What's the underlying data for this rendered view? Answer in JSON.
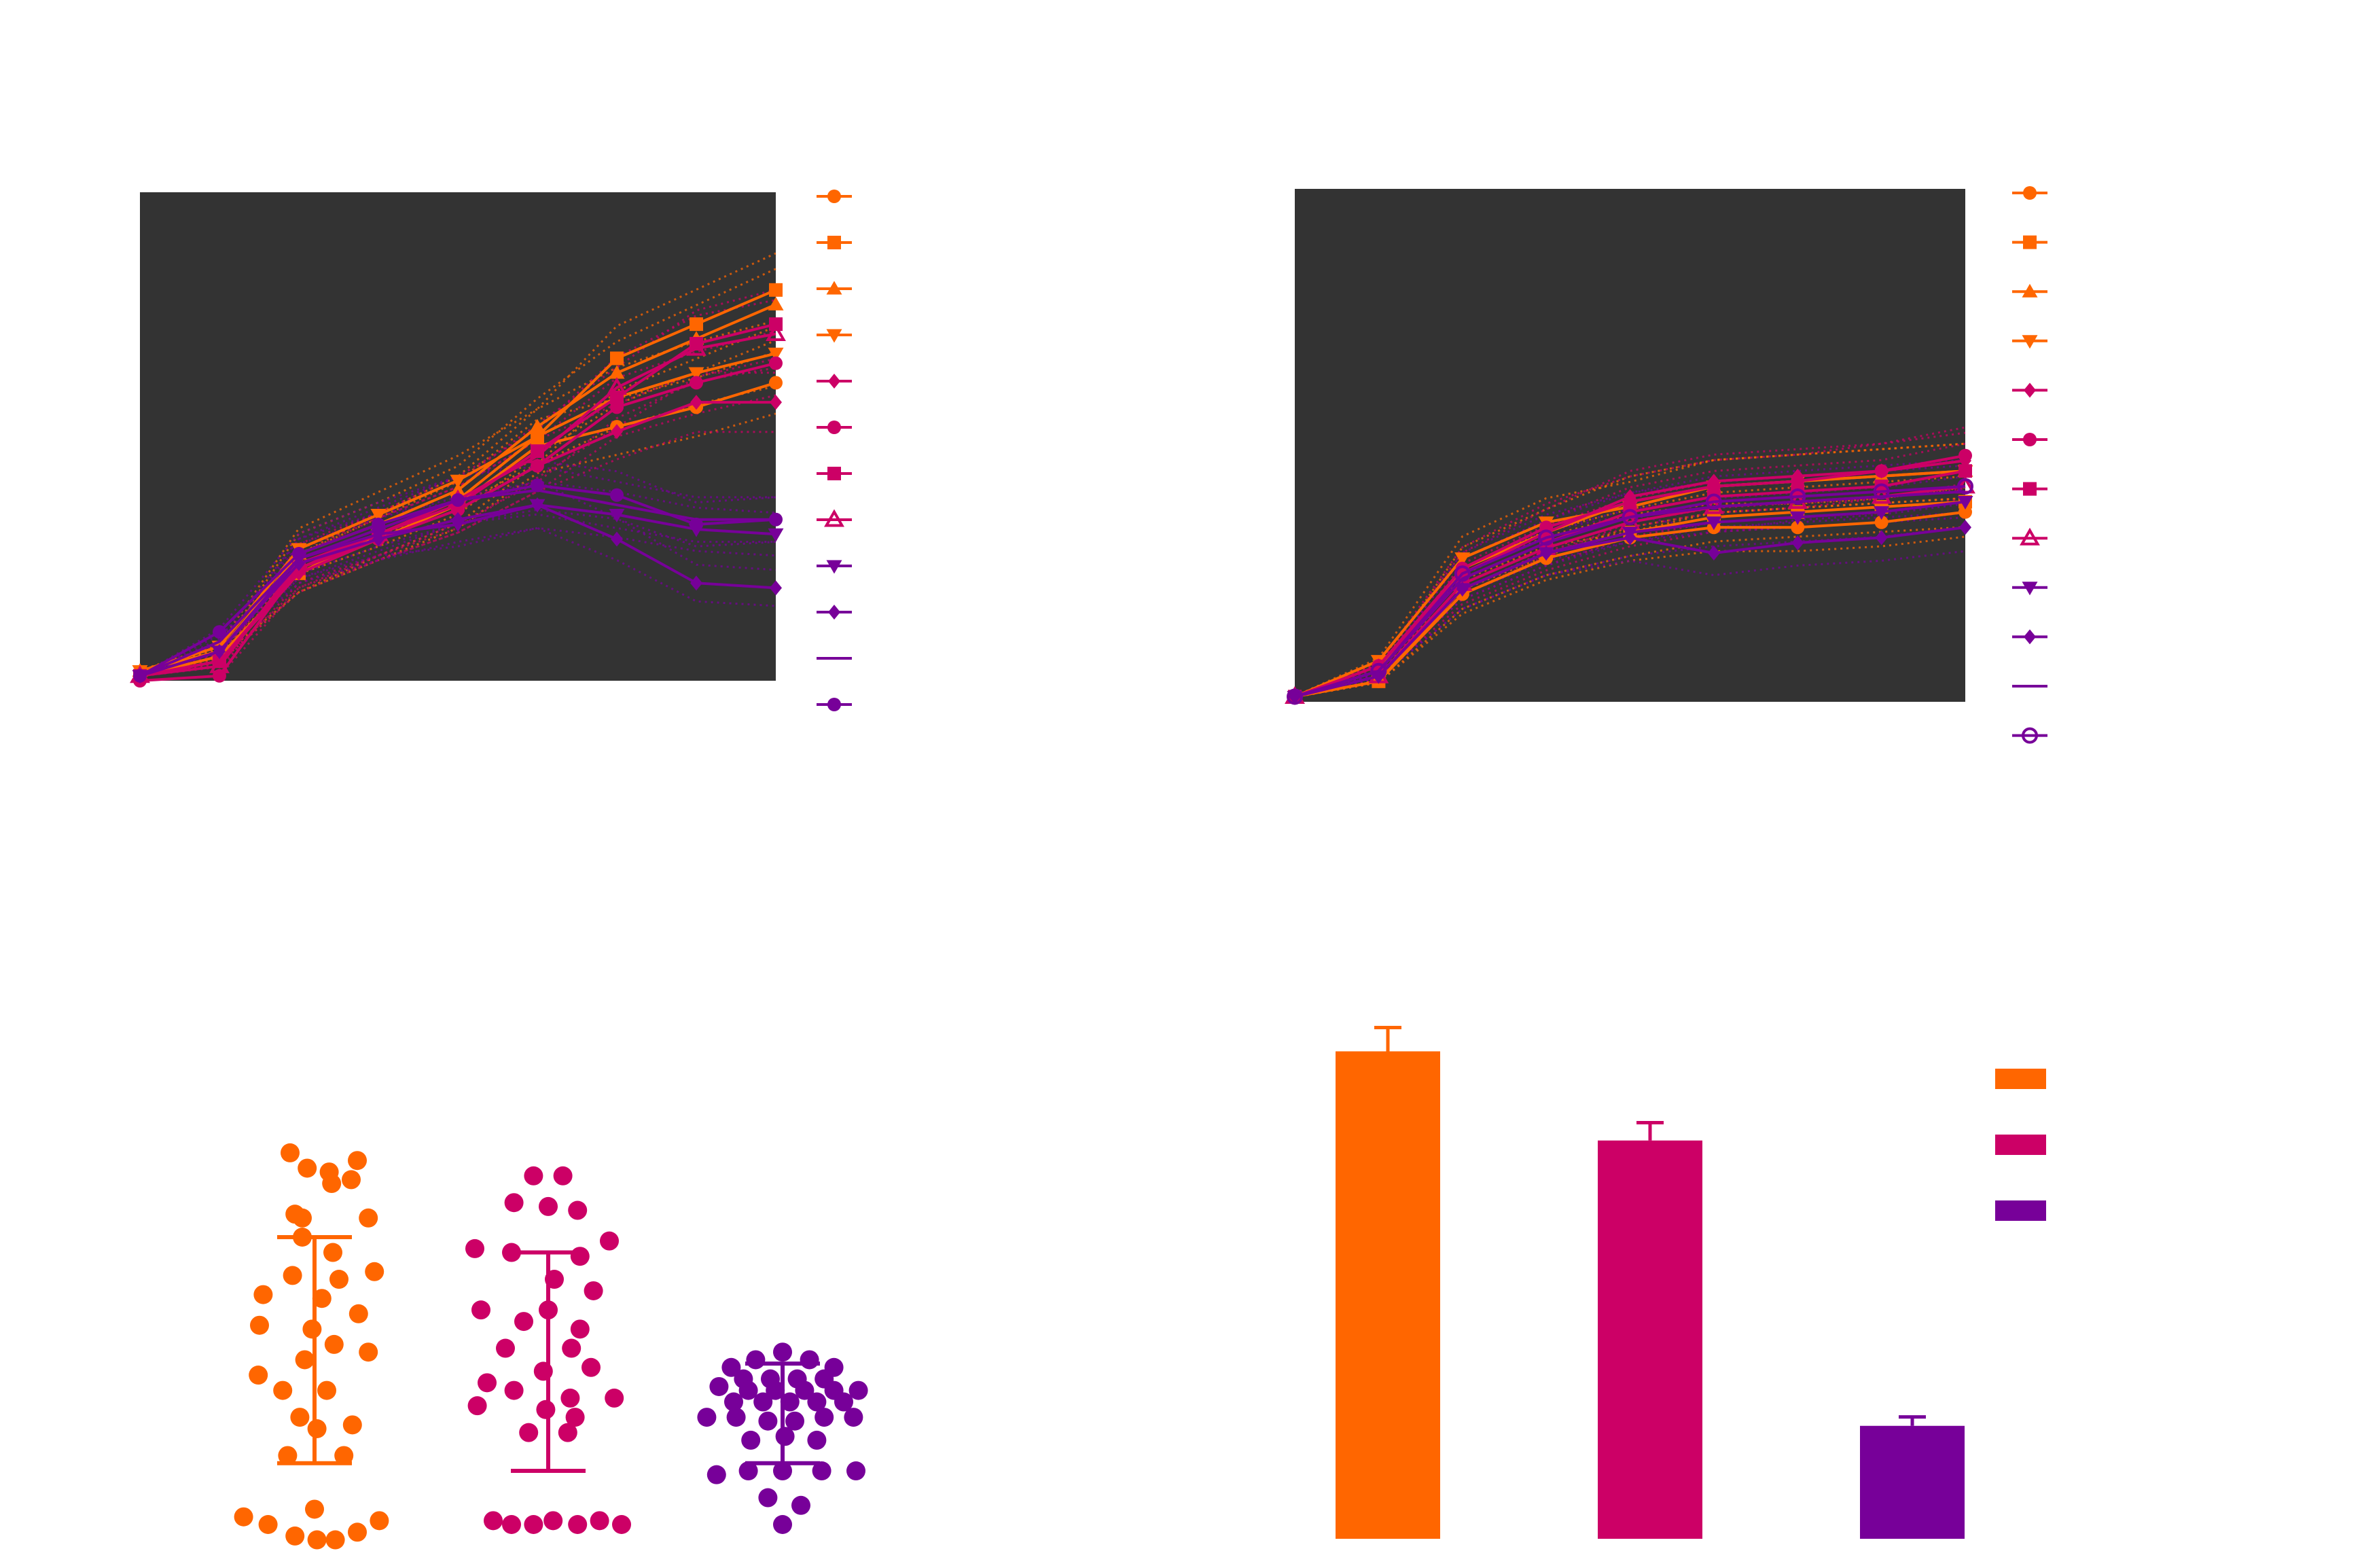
{
  "colors": {
    "orange": "#FF6600",
    "magenta": "#CC0066",
    "purple": "#770099",
    "plot_background": "#333333",
    "page_background": "#FFFFFF"
  },
  "chart_data": [
    {
      "panel": "top-left",
      "type": "line",
      "title": "",
      "xlabel": "",
      "ylabel": "",
      "xlim": [
        0,
        8
      ],
      "ylim": [
        0,
        100
      ],
      "grid": false,
      "background": "#333333",
      "legend_placement": "right",
      "x": [
        0,
        1,
        2,
        3,
        4,
        5,
        6,
        7,
        8
      ],
      "series": [
        {
          "color": "#FF6600",
          "marker": "circle-filled",
          "values": [
            1,
            5,
            22,
            29,
            36,
            48,
            52,
            56,
            61
          ]
        },
        {
          "color": "#FF6600",
          "marker": "square-filled",
          "values": [
            1,
            4,
            22,
            30,
            37,
            50,
            66,
            73,
            80
          ]
        },
        {
          "color": "#FF6600",
          "marker": "triangle-up-filled",
          "values": [
            2,
            6,
            26,
            32,
            39,
            52,
            63,
            70,
            77
          ]
        },
        {
          "color": "#FF6600",
          "marker": "triangle-down-filled",
          "values": [
            2,
            7,
            27,
            34,
            41,
            50,
            58,
            63,
            67
          ]
        },
        {
          "color": "#CC0066",
          "marker": "diamond-filled",
          "values": [
            1,
            4,
            22,
            29,
            35,
            44,
            51,
            57,
            57
          ]
        },
        {
          "color": "#CC0066",
          "marker": "circle-filled",
          "values": [
            0,
            1,
            23,
            29,
            35,
            44,
            56,
            61,
            65
          ]
        },
        {
          "color": "#CC0066",
          "marker": "square-filled",
          "values": [
            1,
            4,
            23,
            30,
            36,
            47,
            58,
            69,
            73
          ]
        },
        {
          "color": "#CC0066",
          "marker": "triangle-up-open",
          "values": [
            1,
            3,
            24,
            30,
            37,
            46,
            60,
            68,
            71
          ]
        },
        {
          "color": "#770099",
          "marker": "triangle-down-filled",
          "values": [
            1,
            6,
            25,
            30,
            32,
            36,
            34,
            31,
            30
          ]
        },
        {
          "color": "#770099",
          "marker": "diamond-filled",
          "values": [
            1,
            6,
            24,
            29,
            33,
            36,
            29,
            20,
            19
          ]
        },
        {
          "color": "#770099",
          "marker": "none",
          "values": [
            1,
            8,
            25,
            31,
            37,
            39,
            36,
            33,
            33
          ]
        },
        {
          "color": "#770099",
          "marker": "circle-filled",
          "values": [
            1,
            10,
            26,
            32,
            37,
            40,
            38,
            32,
            33
          ]
        }
      ]
    },
    {
      "panel": "top-right",
      "type": "line",
      "title": "",
      "xlabel": "",
      "ylabel": "",
      "xlim": [
        0,
        8
      ],
      "ylim": [
        0,
        100
      ],
      "grid": false,
      "background": "#333333",
      "legend_placement": "right",
      "x": [
        0,
        1,
        2,
        3,
        4,
        5,
        6,
        7,
        8
      ],
      "series": [
        {
          "color": "#FF6600",
          "marker": "circle-filled",
          "values": [
            1,
            4,
            21,
            28,
            32,
            34,
            34,
            35,
            37
          ]
        },
        {
          "color": "#FF6600",
          "marker": "square-filled",
          "values": [
            1,
            4,
            22,
            29,
            33,
            36,
            37,
            38,
            39
          ]
        },
        {
          "color": "#FF6600",
          "marker": "triangle-up-filled",
          "values": [
            1,
            6,
            26,
            33,
            39,
            42,
            43,
            44,
            45
          ]
        },
        {
          "color": "#FF6600",
          "marker": "triangle-down-filled",
          "values": [
            1,
            8,
            28,
            35,
            38,
            42,
            43,
            44,
            45
          ]
        },
        {
          "color": "#CC0066",
          "marker": "diamond-filled",
          "values": [
            1,
            7,
            25,
            33,
            40,
            43,
            44,
            45,
            47
          ]
        },
        {
          "color": "#CC0066",
          "marker": "circle-filled",
          "values": [
            1,
            7,
            26,
            34,
            39,
            42,
            43,
            45,
            48
          ]
        },
        {
          "color": "#CC0066",
          "marker": "square-filled",
          "values": [
            1,
            6,
            24,
            31,
            37,
            40,
            41,
            42,
            45
          ]
        },
        {
          "color": "#CC0066",
          "marker": "triangle-up-open",
          "values": [
            1,
            5,
            23,
            30,
            35,
            38,
            39,
            40,
            42
          ]
        },
        {
          "color": "#770099",
          "marker": "triangle-down-filled",
          "values": [
            1,
            5,
            22,
            29,
            33,
            35,
            36,
            37,
            39
          ]
        },
        {
          "color": "#770099",
          "marker": "diamond-filled",
          "values": [
            1,
            5,
            22,
            29,
            32,
            29,
            31,
            32,
            34
          ]
        },
        {
          "color": "#770099",
          "marker": "none",
          "values": [
            1,
            6,
            24,
            31,
            36,
            38,
            39,
            40,
            41
          ]
        },
        {
          "color": "#770099",
          "marker": "circle-open",
          "values": [
            1,
            6,
            25,
            32,
            36,
            39,
            40,
            41,
            42
          ]
        }
      ]
    },
    {
      "panel": "bottom-left",
      "type": "scatter",
      "title": "",
      "xlabel": "",
      "ylabel": "",
      "ylim": [
        0,
        100
      ],
      "grid": false,
      "groups": [
        {
          "color": "#FF6600",
          "mean": 50,
          "sd_upper": 75,
          "sd_lower": 16,
          "points": [
            [
              -0.2,
              97
            ],
            [
              -0.06,
              93
            ],
            [
              0.12,
              92
            ],
            [
              0.35,
              95
            ],
            [
              0.3,
              90
            ],
            [
              0.14,
              89
            ],
            [
              -0.16,
              81
            ],
            [
              -0.1,
              80
            ],
            [
              0.44,
              80
            ],
            [
              -0.1,
              75
            ],
            [
              0.15,
              71
            ],
            [
              -0.18,
              65
            ],
            [
              0.2,
              64
            ],
            [
              0.49,
              66
            ],
            [
              -0.42,
              60
            ],
            [
              0.06,
              59
            ],
            [
              -0.45,
              52
            ],
            [
              -0.02,
              51
            ],
            [
              0.36,
              55
            ],
            [
              -0.46,
              39
            ],
            [
              -0.08,
              43
            ],
            [
              0.16,
              47
            ],
            [
              0.44,
              45
            ],
            [
              -0.26,
              35
            ],
            [
              0.1,
              35
            ],
            [
              -0.12,
              28
            ],
            [
              0.31,
              26
            ],
            [
              0.02,
              25
            ],
            [
              -0.22,
              18
            ],
            [
              0.24,
              18
            ],
            [
              0.0,
              4
            ],
            [
              -0.58,
              2
            ],
            [
              -0.38,
              0
            ],
            [
              -0.16,
              -3
            ],
            [
              0.02,
              -4
            ],
            [
              0.17,
              -4
            ],
            [
              0.35,
              -2
            ],
            [
              0.53,
              1
            ]
          ]
        },
        {
          "color": "#CC0066",
          "mean": 42,
          "sd_upper": 71,
          "sd_lower": 14,
          "points": [
            [
              -0.12,
              91
            ],
            [
              0.12,
              91
            ],
            [
              -0.28,
              84
            ],
            [
              0.0,
              83
            ],
            [
              0.24,
              82
            ],
            [
              -0.6,
              72
            ],
            [
              0.5,
              74
            ],
            [
              -0.3,
              71
            ],
            [
              0.26,
              70
            ],
            [
              0.05,
              64
            ],
            [
              -0.55,
              56
            ],
            [
              0.0,
              56
            ],
            [
              0.37,
              61
            ],
            [
              -0.2,
              53
            ],
            [
              0.26,
              51
            ],
            [
              -0.35,
              46
            ],
            [
              0.19,
              46
            ],
            [
              -0.04,
              40
            ],
            [
              0.35,
              41
            ],
            [
              -0.5,
              37
            ],
            [
              -0.28,
              35
            ],
            [
              0.18,
              33
            ],
            [
              0.54,
              33
            ],
            [
              -0.58,
              31
            ],
            [
              -0.02,
              30
            ],
            [
              0.22,
              28
            ],
            [
              -0.16,
              24
            ],
            [
              0.16,
              24
            ],
            [
              -0.45,
              1
            ],
            [
              -0.3,
              0
            ],
            [
              -0.12,
              0
            ],
            [
              0.04,
              1
            ],
            [
              0.24,
              0
            ],
            [
              0.42,
              1
            ],
            [
              0.6,
              0
            ]
          ]
        },
        {
          "color": "#770099",
          "mean": 30,
          "sd_upper": 42,
          "sd_lower": 16,
          "points": [
            [
              0.0,
              45
            ],
            [
              -0.22,
              43
            ],
            [
              0.22,
              43
            ],
            [
              -0.42,
              41
            ],
            [
              0.42,
              41
            ],
            [
              -0.32,
              38
            ],
            [
              -0.1,
              38
            ],
            [
              0.12,
              38
            ],
            [
              0.34,
              38
            ],
            [
              -0.52,
              36
            ],
            [
              -0.28,
              35
            ],
            [
              -0.06,
              35
            ],
            [
              0.18,
              35
            ],
            [
              0.42,
              35
            ],
            [
              0.62,
              35
            ],
            [
              -0.4,
              32
            ],
            [
              -0.16,
              32
            ],
            [
              0.06,
              32
            ],
            [
              0.28,
              32
            ],
            [
              0.5,
              32
            ],
            [
              -0.62,
              28
            ],
            [
              -0.38,
              28
            ],
            [
              -0.12,
              27
            ],
            [
              0.1,
              27
            ],
            [
              0.34,
              28
            ],
            [
              0.58,
              28
            ],
            [
              -0.26,
              22
            ],
            [
              0.02,
              23
            ],
            [
              0.28,
              22
            ],
            [
              -0.54,
              13
            ],
            [
              -0.28,
              14
            ],
            [
              0.0,
              14
            ],
            [
              0.32,
              14
            ],
            [
              0.6,
              14
            ],
            [
              -0.12,
              7
            ],
            [
              0.15,
              5
            ],
            [
              0.0,
              0
            ]
          ]
        }
      ]
    },
    {
      "panel": "bottom-right",
      "type": "bar",
      "title": "",
      "xlabel": "",
      "ylabel": "",
      "ylim": [
        0,
        100
      ],
      "grid": false,
      "legend_placement": "top-right",
      "bars": [
        {
          "color": "#FF6600",
          "value": 82,
          "error": 4
        },
        {
          "color": "#CC0066",
          "value": 67,
          "error": 3
        },
        {
          "color": "#770099",
          "value": 19,
          "error": 1.5
        }
      ]
    }
  ]
}
